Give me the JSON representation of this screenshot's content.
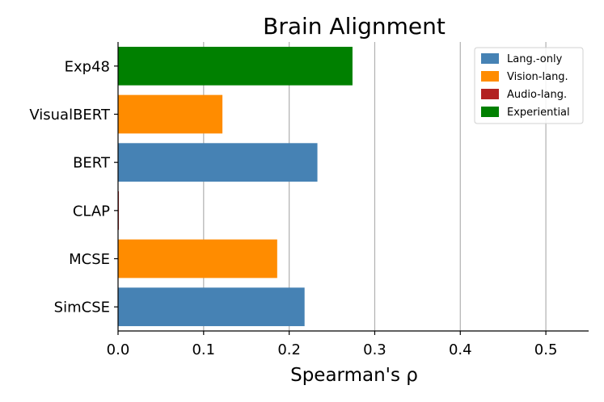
{
  "chart_data": {
    "type": "bar",
    "orientation": "horizontal",
    "title": "Brain Alignment",
    "xlabel": "Spearman's ρ",
    "ylabel": "",
    "xlim": [
      0,
      0.55
    ],
    "xticks": [
      0.0,
      0.1,
      0.2,
      0.3,
      0.4,
      0.5
    ],
    "xtick_labels": [
      "0.0",
      "0.1",
      "0.2",
      "0.3",
      "0.4",
      "0.5"
    ],
    "grid": "vertical",
    "legend_position": "top-right",
    "categories": [
      "Exp48",
      "VisualBERT",
      "BERT",
      "CLAP",
      "MCSE",
      "SimCSE"
    ],
    "values": [
      0.274,
      0.122,
      0.233,
      0.001,
      0.186,
      0.218
    ],
    "groups": [
      "Experiential",
      "Vision-lang.",
      "Lang.-only",
      "Audio-lang.",
      "Vision-lang.",
      "Lang.-only"
    ],
    "legend": [
      {
        "label": "Lang.-only",
        "color": "#4682b4"
      },
      {
        "label": "Vision-lang.",
        "color": "#ff8c00"
      },
      {
        "label": "Audio-lang.",
        "color": "#b22222"
      },
      {
        "label": "Experiential",
        "color": "#008000"
      }
    ]
  }
}
